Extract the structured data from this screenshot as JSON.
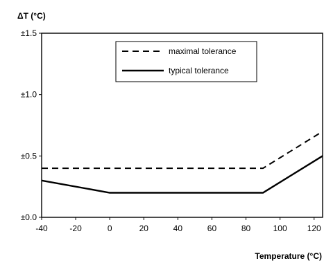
{
  "chart_data": {
    "type": "line",
    "title": "",
    "xlabel": "Temperature (°C)",
    "ylabel": "ΔT (°C)",
    "xlim": [
      -40,
      125
    ],
    "ylim": [
      0,
      1.5
    ],
    "x_ticks": [
      -40,
      -20,
      0,
      20,
      40,
      60,
      80,
      100,
      120
    ],
    "x_tick_labels": [
      "-40",
      "-20",
      "0",
      "20",
      "40",
      "60",
      "80",
      "100",
      "120"
    ],
    "y_ticks": [
      0,
      0.5,
      1.0,
      1.5
    ],
    "y_tick_labels": [
      "±0.0",
      "±0.5",
      "±1.0",
      "±1.5"
    ],
    "grid": false,
    "legend_position": "top-right",
    "series": [
      {
        "name": "maximal tolerance",
        "style": "dashed",
        "color": "#000000",
        "x": [
          -40,
          90,
          125
        ],
        "y": [
          0.4,
          0.4,
          0.7
        ]
      },
      {
        "name": "typical tolerance",
        "style": "solid",
        "color": "#000000",
        "x": [
          -40,
          0,
          90,
          125
        ],
        "y": [
          0.3,
          0.2,
          0.2,
          0.5
        ]
      }
    ]
  }
}
